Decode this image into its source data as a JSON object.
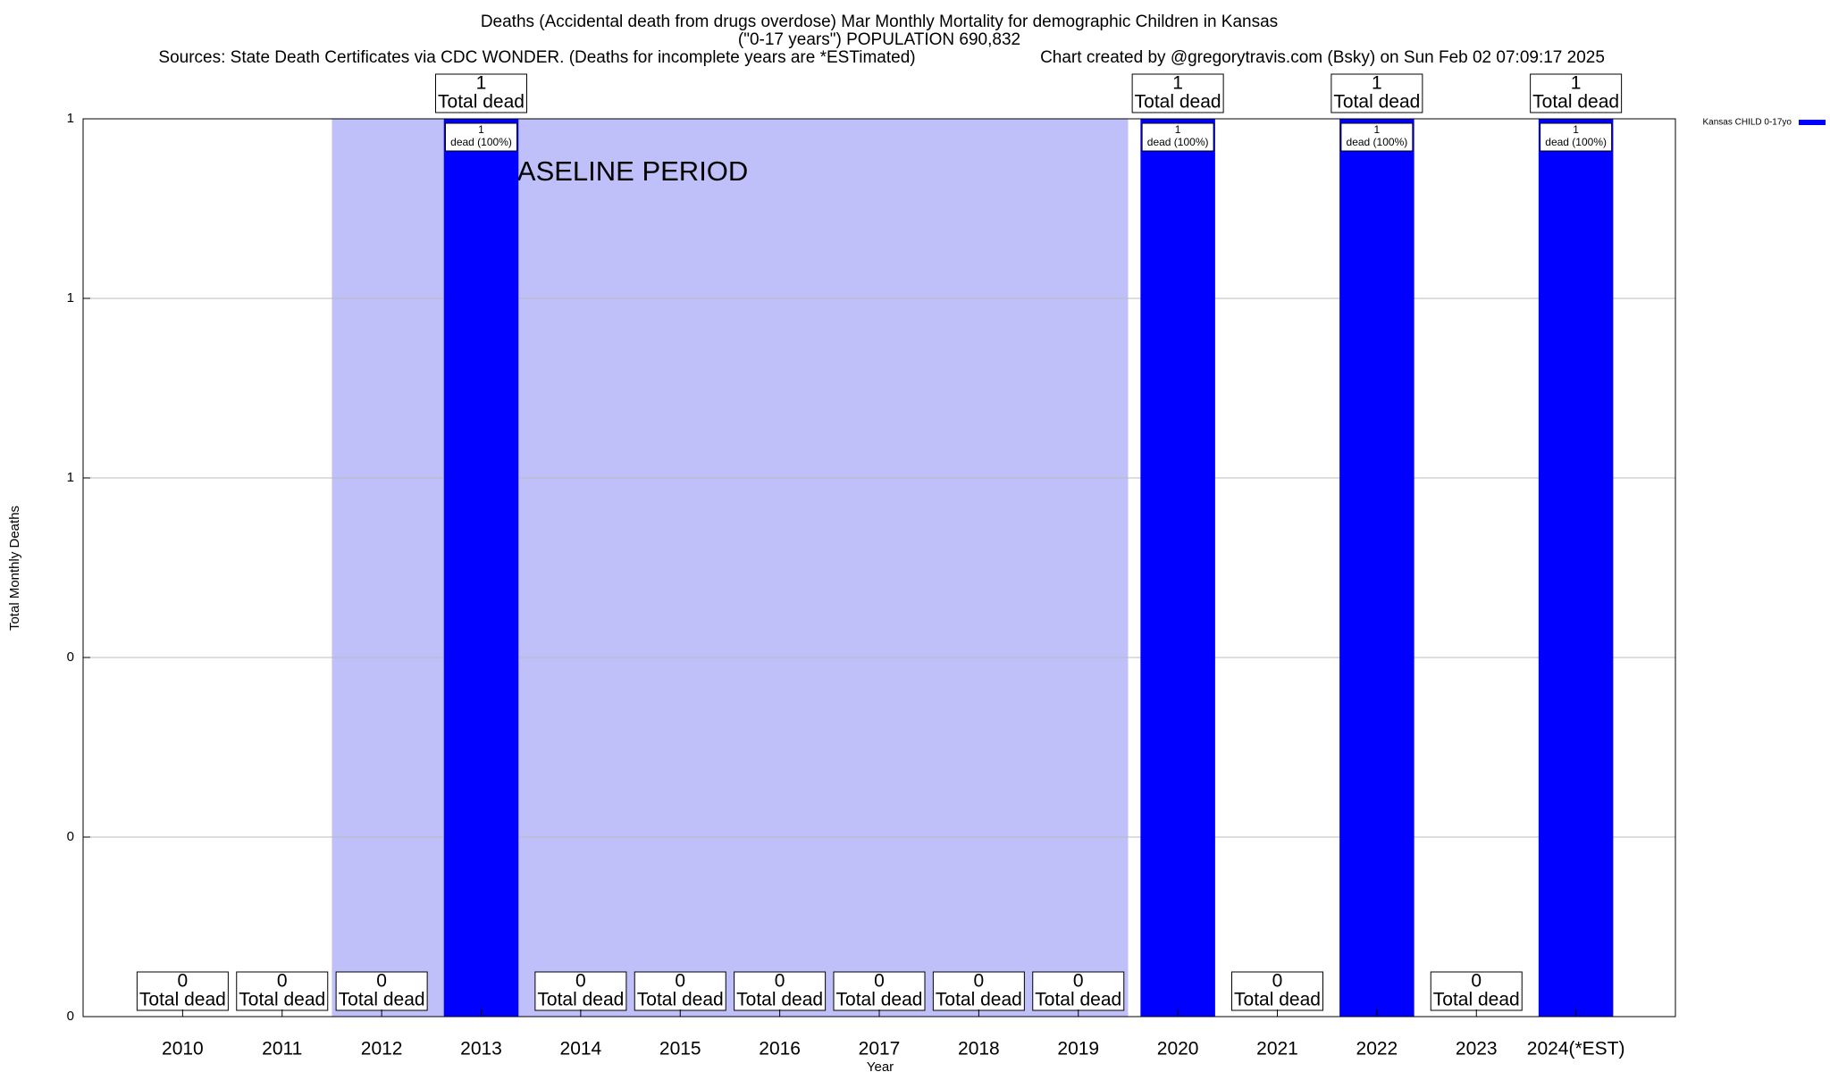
{
  "chart_data": {
    "type": "bar",
    "title": "Deaths (Accidental death from drugs overdose) Mar Monthly Mortality for demographic Children in Kansas",
    "subtitle": "(\"0-17 years\") POPULATION 690,832",
    "source": "Sources: State Death Certificates via CDC WONDER. (Deaths for incomplete years are *ESTimated)",
    "credit": "Chart created by @gregorytravis.com (Bsky) on Sun Feb 02 07:09:17 2025",
    "y_label": "Total Monthly Deaths",
    "x_label": "Year",
    "categories": [
      "2010",
      "2011",
      "2012",
      "2013",
      "2014",
      "2015",
      "2016",
      "2017",
      "2018",
      "2019",
      "2020",
      "2021",
      "2022",
      "2023",
      "2024(*EST)"
    ],
    "series": [
      {
        "name": "Kansas CHILD 0-17yo",
        "color": "#0000ff",
        "values": [
          0,
          0,
          0,
          1,
          0,
          0,
          0,
          0,
          0,
          0,
          1,
          0,
          1,
          0,
          1
        ]
      }
    ],
    "total_label": "Total dead",
    "inner_label": "dead (100%)",
    "baseline": {
      "label": "BASELINE PERIOD",
      "start": "2012",
      "end": "2019",
      "color": "#bfbffa"
    },
    "ylim": [
      0,
      1
    ],
    "yticks": [
      0,
      {
        "value": 0.2,
        "label": "0"
      },
      {
        "value": 0.4,
        "label": "0"
      },
      {
        "value": 0.6,
        "label": "1"
      },
      {
        "value": 0.8,
        "label": "1"
      },
      1
    ],
    "grid": true,
    "legend": "top-right"
  }
}
